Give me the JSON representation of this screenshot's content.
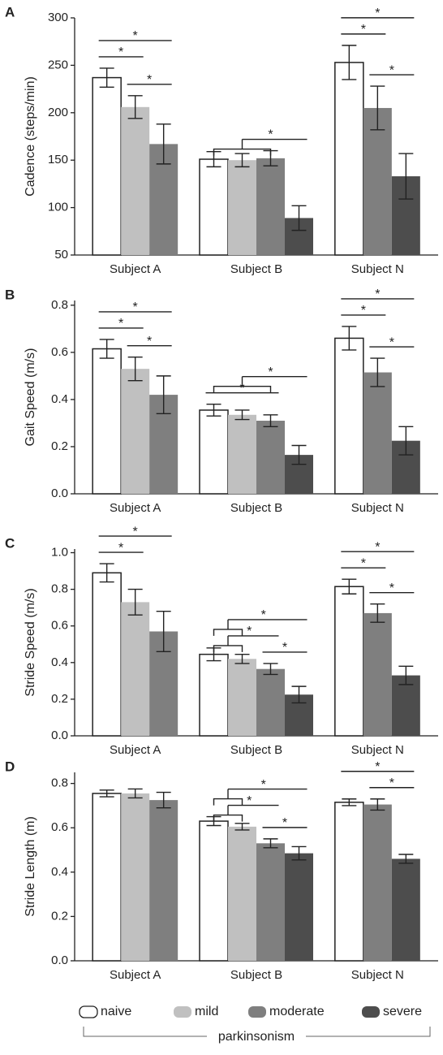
{
  "chart_data": [
    {
      "type": "bar",
      "panel": "A",
      "ylabel": "Cadence (steps/min)",
      "categories": [
        "Subject A",
        "Subject B",
        "Subject N"
      ],
      "series": [
        {
          "name": "naive",
          "color": "#ffffff",
          "values": [
            237,
            151,
            253
          ],
          "errors": [
            10,
            8,
            18
          ]
        },
        {
          "name": "mild",
          "color": "#c0c0c0",
          "values": [
            206,
            150,
            null
          ],
          "errors": [
            12,
            7,
            null
          ]
        },
        {
          "name": "moderate",
          "color": "#7f7f7f",
          "values": [
            167,
            152,
            205
          ],
          "errors": [
            21,
            8,
            23
          ]
        },
        {
          "name": "severe",
          "color": "#4d4d4d",
          "values": [
            null,
            89,
            133
          ],
          "errors": [
            null,
            13,
            24
          ]
        }
      ],
      "ylim": [
        50,
        300
      ],
      "yticks": [
        50,
        100,
        150,
        200,
        250,
        300
      ],
      "comparisons": [
        {
          "category": "Subject A",
          "from": [
            "mild"
          ],
          "to": [
            "moderate"
          ],
          "label": "*"
        },
        {
          "category": "Subject A",
          "from": [
            "naive"
          ],
          "to": [
            "mild"
          ],
          "label": "*"
        },
        {
          "category": "Subject A",
          "from": [
            "naive"
          ],
          "to": [
            "moderate"
          ],
          "label": "*"
        },
        {
          "category": "Subject B",
          "from": [
            "naive",
            "mild",
            "moderate"
          ],
          "to": [
            "severe"
          ],
          "label": "*"
        },
        {
          "category": "Subject N",
          "from": [
            "moderate"
          ],
          "to": [
            "severe"
          ],
          "label": "*"
        },
        {
          "category": "Subject N",
          "from": [
            "naive"
          ],
          "to": [
            "moderate"
          ],
          "label": "*"
        },
        {
          "category": "Subject N",
          "from": [
            "naive"
          ],
          "to": [
            "severe"
          ],
          "label": "*"
        }
      ]
    },
    {
      "type": "bar",
      "panel": "B",
      "ylabel": "Gait Speed (m/s)",
      "categories": [
        "Subject A",
        "Subject B",
        "Subject N"
      ],
      "series": [
        {
          "name": "naive",
          "color": "#ffffff",
          "values": [
            0.615,
            0.355,
            0.66
          ],
          "errors": [
            0.04,
            0.025,
            0.05
          ]
        },
        {
          "name": "mild",
          "color": "#c0c0c0",
          "values": [
            0.53,
            0.335,
            null
          ],
          "errors": [
            0.05,
            0.02,
            null
          ]
        },
        {
          "name": "moderate",
          "color": "#7f7f7f",
          "values": [
            0.42,
            0.31,
            0.515
          ],
          "errors": [
            0.08,
            0.025,
            0.06
          ]
        },
        {
          "name": "severe",
          "color": "#4d4d4d",
          "values": [
            null,
            0.165,
            0.225
          ],
          "errors": [
            null,
            0.04,
            0.06
          ]
        }
      ],
      "ylim": [
        0,
        0.82
      ],
      "yticks": [
        {
          "value": 0,
          "label": "0.0"
        },
        0.2,
        0.4,
        0.6,
        0.8
      ],
      "comparisons": [
        {
          "category": "Subject A",
          "from": [
            "mild"
          ],
          "to": [
            "moderate"
          ],
          "label": "*"
        },
        {
          "category": "Subject A",
          "from": [
            "naive"
          ],
          "to": [
            "mild"
          ],
          "label": "*"
        },
        {
          "category": "Subject A",
          "from": [
            "naive"
          ],
          "to": [
            "moderate"
          ],
          "label": "*"
        },
        {
          "category": "Subject B",
          "from": [
            "naive"
          ],
          "to": [
            "moderate"
          ],
          "label": "*"
        },
        {
          "category": "Subject B",
          "from": [
            "naive",
            "mild",
            "moderate"
          ],
          "to": [
            "severe"
          ],
          "label": "*"
        },
        {
          "category": "Subject N",
          "from": [
            "moderate"
          ],
          "to": [
            "severe"
          ],
          "label": "*"
        },
        {
          "category": "Subject N",
          "from": [
            "naive"
          ],
          "to": [
            "moderate"
          ],
          "label": "*"
        },
        {
          "category": "Subject N",
          "from": [
            "naive"
          ],
          "to": [
            "severe"
          ],
          "label": "*"
        }
      ]
    },
    {
      "type": "bar",
      "panel": "C",
      "ylabel": "Stride Speed (m/s)",
      "categories": [
        "Subject A",
        "Subject B",
        "Subject N"
      ],
      "series": [
        {
          "name": "naive",
          "color": "#ffffff",
          "values": [
            0.89,
            0.445,
            0.815
          ],
          "errors": [
            0.05,
            0.035,
            0.04
          ]
        },
        {
          "name": "mild",
          "color": "#c0c0c0",
          "values": [
            0.73,
            0.42,
            null
          ],
          "errors": [
            0.07,
            0.025,
            null
          ]
        },
        {
          "name": "moderate",
          "color": "#7f7f7f",
          "values": [
            0.57,
            0.365,
            0.67
          ],
          "errors": [
            0.11,
            0.03,
            0.05
          ]
        },
        {
          "name": "severe",
          "color": "#4d4d4d",
          "values": [
            null,
            0.225,
            0.33
          ],
          "errors": [
            null,
            0.045,
            0.05
          ]
        }
      ],
      "ylim": [
        0,
        1.02
      ],
      "yticks": [
        {
          "value": 0,
          "label": "0.0"
        },
        0.2,
        0.4,
        0.6,
        0.8,
        {
          "value": 1,
          "label": "1.0"
        }
      ],
      "comparisons": [
        {
          "category": "Subject A",
          "from": [
            "naive"
          ],
          "to": [
            "mild"
          ],
          "label": "*"
        },
        {
          "category": "Subject A",
          "from": [
            "naive"
          ],
          "to": [
            "moderate"
          ],
          "label": "*"
        },
        {
          "category": "Subject B",
          "from": [
            "moderate"
          ],
          "to": [
            "severe"
          ],
          "label": "*"
        },
        {
          "category": "Subject B",
          "from": [
            "naive",
            "mild"
          ],
          "to": [
            "moderate"
          ],
          "label": "*"
        },
        {
          "category": "Subject B",
          "from": [
            "naive",
            "mild"
          ],
          "to": [
            "severe"
          ],
          "label": "*"
        },
        {
          "category": "Subject N",
          "from": [
            "moderate"
          ],
          "to": [
            "severe"
          ],
          "label": "*"
        },
        {
          "category": "Subject N",
          "from": [
            "naive"
          ],
          "to": [
            "moderate"
          ],
          "label": "*"
        },
        {
          "category": "Subject N",
          "from": [
            "naive"
          ],
          "to": [
            "severe"
          ],
          "label": "*"
        }
      ]
    },
    {
      "type": "bar",
      "panel": "D",
      "ylabel": "Stride Length (m)",
      "categories": [
        "Subject A",
        "Subject B",
        "Subject N"
      ],
      "series": [
        {
          "name": "naive",
          "color": "#ffffff",
          "values": [
            0.755,
            0.63,
            0.715
          ],
          "errors": [
            0.015,
            0.02,
            0.015
          ]
        },
        {
          "name": "mild",
          "color": "#c0c0c0",
          "values": [
            0.755,
            0.605,
            null
          ],
          "errors": [
            0.02,
            0.015,
            null
          ]
        },
        {
          "name": "moderate",
          "color": "#7f7f7f",
          "values": [
            0.725,
            0.53,
            0.705
          ],
          "errors": [
            0.035,
            0.02,
            0.025
          ]
        },
        {
          "name": "severe",
          "color": "#4d4d4d",
          "values": [
            null,
            0.485,
            0.46
          ],
          "errors": [
            null,
            0.03,
            0.02
          ]
        }
      ],
      "ylim": [
        0,
        0.85
      ],
      "yticks": [
        {
          "value": 0,
          "label": "0.0"
        },
        0.2,
        0.4,
        0.6,
        0.8
      ],
      "comparisons": [
        {
          "category": "Subject B",
          "from": [
            "moderate"
          ],
          "to": [
            "severe"
          ],
          "label": "*"
        },
        {
          "category": "Subject B",
          "from": [
            "naive",
            "mild"
          ],
          "to": [
            "moderate"
          ],
          "label": "*"
        },
        {
          "category": "Subject B",
          "from": [
            "naive",
            "mild"
          ],
          "to": [
            "severe"
          ],
          "label": "*"
        },
        {
          "category": "Subject N",
          "from": [
            "moderate"
          ],
          "to": [
            "severe"
          ],
          "label": "*"
        },
        {
          "category": "Subject N",
          "from": [
            "naive"
          ],
          "to": [
            "severe"
          ],
          "label": "*"
        }
      ]
    }
  ],
  "legend": {
    "group_label": "parkinsonism"
  }
}
